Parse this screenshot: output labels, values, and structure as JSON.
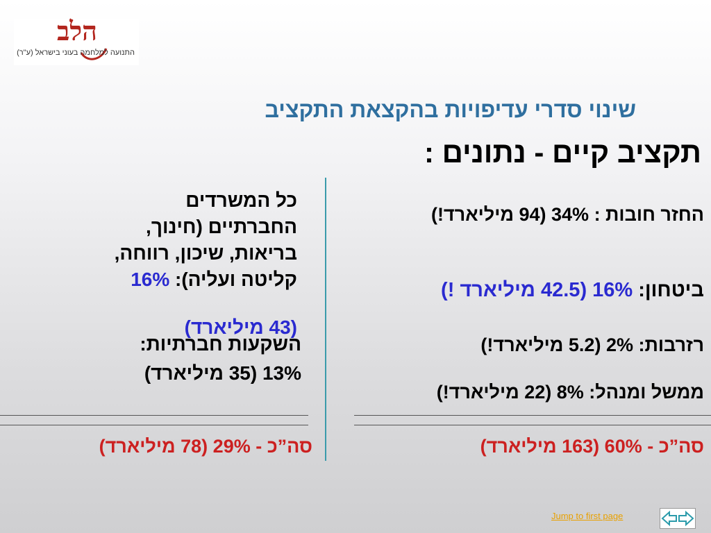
{
  "logo": {
    "mark": "הלב",
    "tagline": "התנועה למלחמה בעוני בישראל (ע\"ר)"
  },
  "title": "שינוי סדרי עדיפויות בהקצאת התקציב",
  "subtitle": "תקציב קיים - נתונים :",
  "right": {
    "debt": "החזר חובות : 34% (94 מיליארד!)",
    "security_label": "ביטחון: ",
    "security_value": "16% (42.5 מיליארד !)",
    "reserves": "רזרבות: 2% (5.2 מיליארד!)",
    "government": "ממשל ומנהל: 8% (22 מיליארד!)",
    "total": "סה”כ - 60% (163 מיליארד)"
  },
  "left": {
    "social_lines": [
      "כל המשרדים",
      "החברתיים (חינוך,",
      "בריאות, שיכון, רווחה,"
    ],
    "social_last_prefix": "קליטה ועליה): ",
    "social_last_value": "16%",
    "social_amount": "(43 מיליארד)",
    "corp_label": "השקעות חברתיות:",
    "corp_value": "13% (35 מיליארד)",
    "total": "סה”כ - 29% (78 מיליארד)"
  },
  "nav": {
    "jump": "Jump to first page"
  },
  "colors": {
    "title": "#2f6f9f",
    "accent_blue": "#2a2ad0",
    "total_red": "#cc2020",
    "divider": "#3a9bab",
    "link": "#e8a000"
  }
}
